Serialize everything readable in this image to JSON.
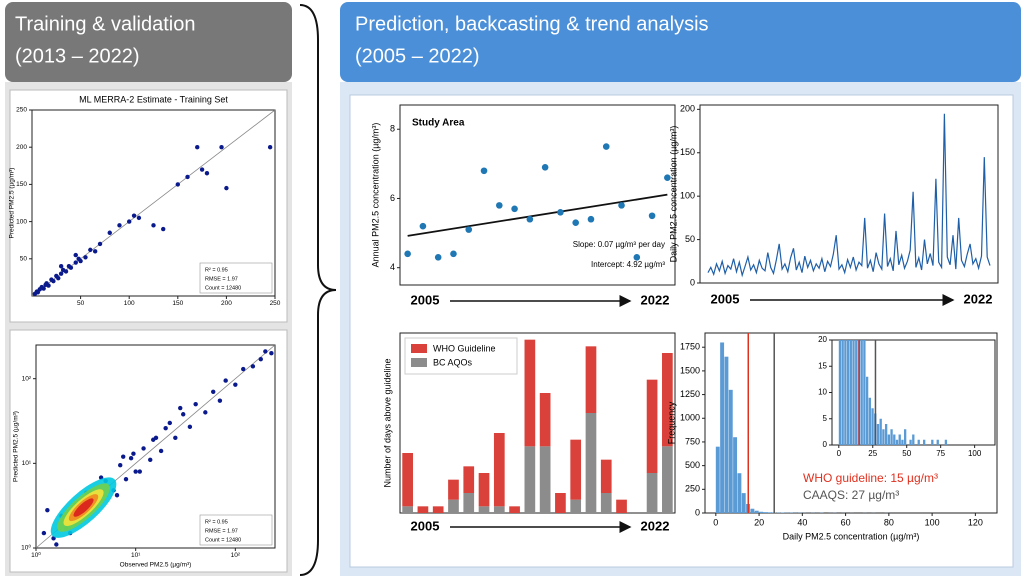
{
  "panels": {
    "left": {
      "title": "Training & validation",
      "subtitle": "(2013 – 2022)"
    },
    "right": {
      "title": "Prediction, backcasting & trend analysis",
      "subtitle": "(2005 – 2022)"
    }
  },
  "chart_data": [
    {
      "type": "scatter",
      "title": "ML MERRA-2 Estimate - Training Set",
      "ylabel": "Predicted PM2.5 (µg/m³)",
      "xlim": [
        0,
        250
      ],
      "ylim": [
        0,
        250
      ],
      "xticks": [
        50,
        100,
        150,
        200,
        250
      ],
      "yticks": [
        50,
        100,
        150,
        200,
        250
      ],
      "color": "#0a1a8c",
      "x": [
        3,
        5,
        6,
        8,
        10,
        12,
        14,
        15,
        17,
        20,
        22,
        25,
        27,
        30,
        32,
        35,
        38,
        40,
        45,
        48,
        50,
        55,
        60,
        65,
        70,
        80,
        90,
        100,
        105,
        110,
        125,
        135,
        150,
        160,
        170,
        175,
        180,
        195,
        200,
        245,
        30,
        45
      ],
      "y": [
        3,
        6,
        5,
        9,
        12,
        10,
        15,
        17,
        14,
        22,
        20,
        27,
        24,
        30,
        35,
        33,
        40,
        38,
        45,
        50,
        47,
        52,
        62,
        60,
        70,
        85,
        95,
        100,
        108,
        105,
        95,
        90,
        150,
        160,
        200,
        170,
        165,
        200,
        145,
        200,
        40,
        55
      ],
      "annotations": [
        "R² = 0.95",
        "RMSE = 1.97",
        "Count = 12480"
      ]
    },
    {
      "type": "scatter",
      "log": true,
      "xlabel": "Observed PM2.5 (µg/m³)",
      "ylabel": "Predicted PM2.5 (µg/m³)",
      "xlim": [
        1,
        250
      ],
      "ylim": [
        1,
        250
      ],
      "xticks": [
        {
          "value": 1,
          "label": "10⁰"
        },
        {
          "value": 10,
          "label": "10¹"
        },
        {
          "value": 100,
          "label": "10²"
        }
      ],
      "yticks": [
        {
          "value": 1,
          "label": "10⁰"
        },
        {
          "value": 10,
          "label": "10¹"
        },
        {
          "value": 100,
          "label": "10²"
        }
      ],
      "color": "#0a1a8c",
      "x": [
        1.2,
        1.5,
        1.8,
        2,
        2.5,
        3,
        3.5,
        4,
        5,
        6,
        7,
        8,
        9,
        10,
        12,
        14,
        16,
        18,
        20,
        25,
        30,
        35,
        40,
        50,
        60,
        70,
        80,
        100,
        120,
        150,
        180,
        200,
        230,
        1.3,
        2.2,
        4.5,
        6.5,
        9.5,
        15,
        22,
        1.6,
        3.2,
        7.5,
        11,
        28
      ],
      "y": [
        1.5,
        1.3,
        2.4,
        1.7,
        3.2,
        2.4,
        4.5,
        3.1,
        6.2,
        4.8,
        9.5,
        6.5,
        11.5,
        8,
        15,
        11,
        20,
        14,
        26,
        20,
        38,
        27,
        50,
        40,
        70,
        55,
        95,
        85,
        130,
        140,
        170,
        210,
        200,
        2.8,
        1.5,
        6.8,
        4.2,
        13,
        19,
        30,
        1.1,
        4.5,
        12,
        8,
        45
      ],
      "annotations": [
        "R² = 0.95",
        "RMSE = 1.97",
        "Count = 12480"
      ]
    },
    {
      "type": "scatter_trend",
      "title": "Study Area",
      "ylabel": "Annual PM2.5 concentration (µg/m³)",
      "x_end_labels": [
        "2005",
        "2022"
      ],
      "ylim": [
        3.5,
        8.7
      ],
      "yticks": [
        4,
        6,
        8
      ],
      "color": "#1f77b4",
      "values": [
        4.4,
        5.2,
        4.3,
        4.4,
        5.1,
        6.8,
        5.8,
        5.7,
        5.4,
        6.9,
        5.6,
        5.3,
        5.4,
        7.5,
        5.8,
        4.3,
        5.5,
        6.6
      ],
      "trend": {
        "slope": 0.07,
        "intercept": 4.92
      },
      "annotations": [
        "Slope: 0.07 µg/m³ per day",
        "Intercept: 4.92 µg/m³"
      ]
    },
    {
      "type": "line",
      "ylabel": "Daily PM2.5 concentration (µg/m³)",
      "x_end_labels": [
        "2005",
        "2022"
      ],
      "ylim": [
        0,
        205
      ],
      "yticks": [
        0,
        50,
        100,
        150,
        200
      ],
      "color": "#1f5fa8",
      "values": [
        12,
        18,
        10,
        22,
        14,
        25,
        11,
        20,
        16,
        28,
        13,
        24,
        9,
        19,
        30,
        15,
        21,
        12,
        26,
        17,
        14,
        35,
        18,
        11,
        27,
        45,
        16,
        22,
        13,
        29,
        40,
        15,
        24,
        12,
        31,
        18,
        26,
        14,
        22,
        17,
        28,
        13,
        25,
        19,
        33,
        55,
        16,
        21,
        12,
        27,
        18,
        30,
        15,
        24,
        20,
        75,
        17,
        26,
        13,
        35,
        22,
        16,
        80,
        19,
        28,
        14,
        60,
        21,
        32,
        17,
        25,
        38,
        105,
        18,
        29,
        15,
        50,
        22,
        34,
        20,
        120,
        24,
        18,
        195,
        30,
        21,
        55,
        16,
        75,
        26,
        19,
        33,
        45,
        22,
        28,
        17,
        31,
        145,
        30,
        20
      ]
    },
    {
      "type": "stacked_bar",
      "ylabel": "Number of days above guideline",
      "ylim": [
        0,
        27
      ],
      "legend": "upper left",
      "categories": [
        "2005",
        null,
        null,
        null,
        null,
        null,
        null,
        null,
        null,
        null,
        null,
        null,
        null,
        null,
        null,
        null,
        null,
        "2022"
      ],
      "series": [
        {
          "name": "WHO Guideline",
          "color": "#d9413a",
          "values": [
            8,
            1,
            1,
            3,
            4,
            5,
            11,
            1,
            16,
            8,
            3,
            9,
            10,
            5,
            2,
            0,
            14,
            14
          ]
        },
        {
          "name": "BC AQOs",
          "color": "#8c8c8c",
          "values": [
            1,
            0,
            0,
            2,
            3,
            1,
            1,
            0,
            10,
            10,
            0,
            2,
            15,
            3,
            0,
            0,
            6,
            10
          ]
        }
      ]
    },
    {
      "type": "histogram",
      "xlabel": "Daily PM2.5 concentration (µg/m³)",
      "ylabel": "Frequency",
      "xlim": [
        -5,
        130
      ],
      "ylim": [
        0,
        1900
      ],
      "xticks": [
        0,
        20,
        40,
        60,
        80,
        100,
        120
      ],
      "yticks": [
        0,
        250,
        500,
        750,
        1000,
        1250,
        1500,
        1750
      ],
      "color": "#5b9bd5",
      "bins": [
        0,
        2,
        4,
        6,
        8,
        10,
        12,
        14,
        16,
        18,
        20,
        22,
        24,
        26,
        28,
        30,
        32,
        34,
        36,
        38,
        40,
        42,
        44,
        46,
        48,
        50,
        52,
        54,
        56,
        58,
        60,
        62,
        64,
        66,
        68,
        70,
        72,
        74,
        76,
        78,
        80
      ],
      "counts": [
        700,
        1800,
        1650,
        1300,
        800,
        420,
        210,
        95,
        45,
        24,
        13,
        9,
        7,
        6,
        4,
        5,
        3,
        4,
        2,
        3,
        2,
        1,
        2,
        1,
        3,
        0,
        1,
        2,
        0,
        1,
        0,
        1,
        0,
        0,
        1,
        0,
        1,
        0,
        0,
        1
      ],
      "guidelines": [
        {
          "value": 15,
          "color": "#e0301e",
          "label": "WHO guideline: 15 µg/m³"
        },
        {
          "value": 27,
          "color": "#555555",
          "label": "CAAQS: 27 µg/m³"
        }
      ],
      "inset": {
        "xlim": [
          -5,
          115
        ],
        "ylim": [
          0,
          20
        ],
        "xticks": [
          0,
          25,
          50,
          75,
          100
        ],
        "yticks": [
          0,
          5,
          10,
          15,
          20
        ]
      }
    }
  ]
}
